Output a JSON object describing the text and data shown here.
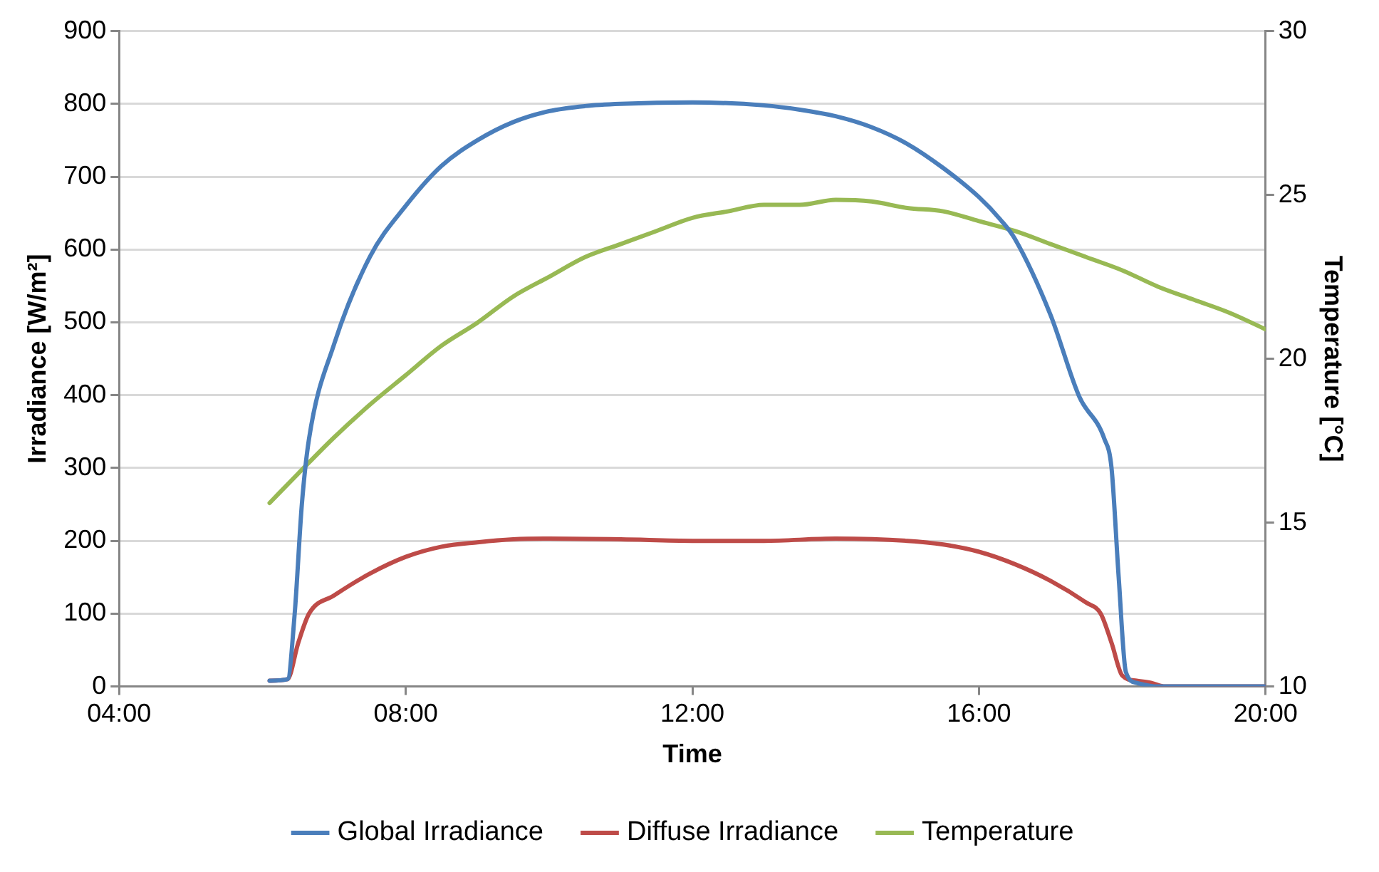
{
  "chart_data": {
    "type": "line",
    "xlabel": "Time",
    "ylabel": "Irradiance [W/m²]",
    "y2label": "Temperature [°C]",
    "xlim": [
      4,
      20
    ],
    "xticks": [
      {
        "value": 4,
        "label": "04:00"
      },
      {
        "value": 8,
        "label": "08:00"
      },
      {
        "value": 12,
        "label": "12:00"
      },
      {
        "value": 16,
        "label": "16:00"
      },
      {
        "value": 20,
        "label": "20:00"
      }
    ],
    "ylim": [
      0,
      900
    ],
    "yticks": [
      0,
      100,
      200,
      300,
      400,
      500,
      600,
      700,
      800,
      900
    ],
    "y2lim": [
      10,
      30
    ],
    "y2ticks": [
      10,
      15,
      20,
      25,
      30
    ],
    "grid": "y",
    "legend": "bottom",
    "marker": "none",
    "line_style": "solid",
    "series": [
      {
        "name": "Global Irradiance",
        "color": "#4a7ebb",
        "x": [
          6.1,
          6.35,
          6.45,
          6.55,
          6.65,
          7,
          7.5,
          8,
          8.5,
          9,
          9.5,
          10,
          10.5,
          11,
          12,
          13,
          13.5,
          14,
          14.5,
          15,
          15.5,
          16,
          16.3,
          16.5,
          17,
          17.4,
          17.75,
          17.85,
          17.95,
          18.05,
          18.2,
          18.5,
          20
        ],
        "values": [
          8,
          10,
          100,
          250,
          340,
          470,
          590,
          660,
          715,
          750,
          775,
          790,
          797,
          800,
          802,
          798,
          792,
          783,
          768,
          745,
          712,
          672,
          641,
          615,
          510,
          398,
          340,
          300,
          150,
          20,
          5,
          0,
          0
        ]
      },
      {
        "name": "Diffuse Irradiance",
        "color": "#be4b48",
        "x": [
          6.1,
          6.35,
          6.5,
          6.65,
          7,
          7.5,
          8,
          8.5,
          9,
          9.5,
          10,
          11,
          12,
          13,
          14,
          15,
          15.5,
          16,
          16.5,
          17,
          17.5,
          17.7,
          17.85,
          18,
          18.2,
          18.4,
          18.6,
          20
        ],
        "values": [
          8,
          10,
          60,
          100,
          125,
          155,
          178,
          192,
          198,
          202,
          203,
          202,
          200,
          200,
          203,
          200,
          195,
          185,
          168,
          145,
          115,
          100,
          60,
          15,
          8,
          5,
          0,
          0
        ]
      },
      {
        "name": "Temperature",
        "color": "#98b954",
        "axis": "y2",
        "x": [
          6.1,
          6.5,
          7,
          7.5,
          8,
          8.5,
          9,
          9.5,
          10,
          10.5,
          11,
          11.5,
          12,
          12.5,
          13,
          13.5,
          14,
          14.5,
          15,
          15.5,
          16,
          16.5,
          17,
          17.5,
          18,
          18.5,
          19,
          19.5,
          20
        ],
        "values": [
          15.6,
          16.5,
          17.6,
          18.6,
          19.5,
          20.4,
          21.1,
          21.9,
          22.5,
          23.1,
          23.5,
          23.9,
          24.3,
          24.5,
          24.7,
          24.7,
          24.85,
          24.8,
          24.6,
          24.5,
          24.2,
          23.9,
          23.5,
          23.1,
          22.7,
          22.2,
          21.8,
          21.4,
          20.9
        ]
      }
    ]
  }
}
